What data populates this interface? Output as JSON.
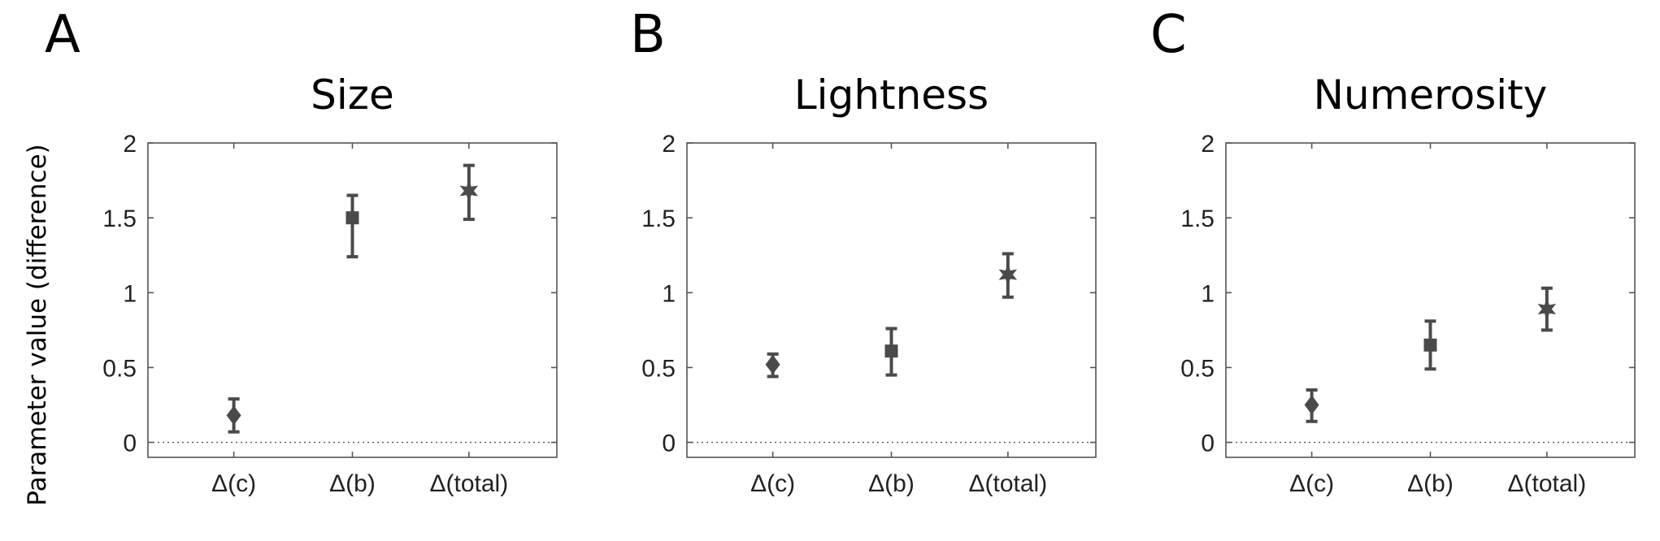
{
  "figure": {
    "ylabel": "Parameter value (difference)"
  },
  "colors": {
    "marker": "#4a4a4a",
    "axes": "#555555"
  },
  "chart_data": [
    {
      "type": "scatter",
      "panel_letter": "A",
      "title": "Size",
      "categories": [
        "Δ(c)",
        "Δ(b)",
        "Δ(total)"
      ],
      "markers": [
        "diamond",
        "square",
        "star"
      ],
      "values": [
        0.18,
        1.5,
        1.68
      ],
      "error_low": [
        0.07,
        1.24,
        1.49
      ],
      "error_high": [
        0.29,
        1.65,
        1.85
      ],
      "ylim": [
        -0.1,
        2
      ],
      "yticks": [
        0,
        0.5,
        1,
        1.5,
        2
      ],
      "ytick_labels": [
        "0",
        "0.5",
        "1",
        "1.5",
        "2"
      ],
      "reference_line": 0,
      "grid": false
    },
    {
      "type": "scatter",
      "panel_letter": "B",
      "title": "Lightness",
      "categories": [
        "Δ(c)",
        "Δ(b)",
        "Δ(total)"
      ],
      "markers": [
        "diamond",
        "square",
        "star"
      ],
      "values": [
        0.52,
        0.61,
        1.12
      ],
      "error_low": [
        0.44,
        0.45,
        0.97
      ],
      "error_high": [
        0.59,
        0.76,
        1.26
      ],
      "ylim": [
        -0.1,
        2
      ],
      "yticks": [
        0,
        0.5,
        1,
        1.5,
        2
      ],
      "ytick_labels": [
        "0",
        "0.5",
        "1",
        "1.5",
        "2"
      ],
      "reference_line": 0,
      "grid": false
    },
    {
      "type": "scatter",
      "panel_letter": "C",
      "title": "Numerosity",
      "categories": [
        "Δ(c)",
        "Δ(b)",
        "Δ(total)"
      ],
      "markers": [
        "diamond",
        "square",
        "star"
      ],
      "values": [
        0.25,
        0.65,
        0.89
      ],
      "error_low": [
        0.14,
        0.49,
        0.75
      ],
      "error_high": [
        0.35,
        0.81,
        1.03
      ],
      "ylim": [
        -0.1,
        2
      ],
      "yticks": [
        0,
        0.5,
        1,
        1.5,
        2
      ],
      "ytick_labels": [
        "0",
        "0.5",
        "1",
        "1.5",
        "2"
      ],
      "reference_line": 0,
      "grid": false
    }
  ]
}
